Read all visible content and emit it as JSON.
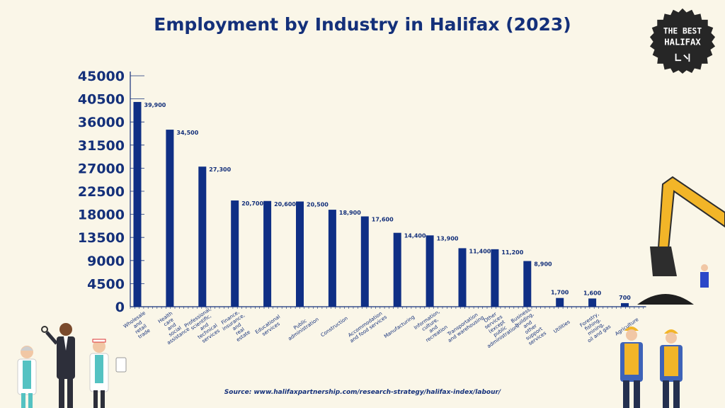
{
  "header": {
    "title": "Employment by Industry in Halifax (2023)"
  },
  "badge": {
    "line1": "THE BEST",
    "line2": "HALIFAX"
  },
  "footer": {
    "source": "Source: www.halifaxpartnership.com/research-strategy/halifax-index/labour/"
  },
  "colors": {
    "bar": "#0f2f85",
    "text": "#14307a",
    "background": "#faf6e8",
    "accent": "#f2b528"
  },
  "chart_data": {
    "type": "bar",
    "title": "Employment by Industry in Halifax (2023)",
    "ylim": [
      0,
      45000
    ],
    "yticks": [
      0,
      4500,
      9000,
      13500,
      18000,
      22500,
      27000,
      31500,
      36000,
      40500,
      45000
    ],
    "ytick_labels": [
      "0",
      "4500",
      "9000",
      "13500",
      "18000",
      "22500",
      "27000",
      "31500",
      "36000",
      "40500",
      "45000"
    ],
    "categories": [
      [
        "Wholesale",
        "and",
        "retail",
        "trade"
      ],
      [
        "Health",
        "care",
        "and",
        "social",
        "assistance"
      ],
      [
        "Professional,",
        "scientific,",
        "and",
        "technical",
        "services"
      ],
      [
        "Finance,",
        "insurance,",
        "and",
        "real",
        "estate"
      ],
      [
        "Educational",
        "services"
      ],
      [
        "Public",
        "administration"
      ],
      [
        "Construction"
      ],
      [
        "Accommodation",
        "and food services"
      ],
      [
        "Manufacturing"
      ],
      [
        "Information,",
        "culture,",
        "and",
        "recreation"
      ],
      [
        "Transportation",
        "and warehousing"
      ],
      [
        "Other",
        "services",
        "(except",
        "public",
        "administration)"
      ],
      [
        "Business,",
        "building,",
        "and",
        "other",
        "support",
        "services"
      ],
      [
        "Utilities"
      ],
      [
        "Forestry,",
        "fishing,",
        "mining,",
        "oil and gas"
      ],
      [
        "Agriculture"
      ]
    ],
    "values": [
      39900,
      34500,
      27300,
      20700,
      20600,
      20500,
      18900,
      17600,
      14400,
      13900,
      11400,
      11200,
      8900,
      1700,
      1600,
      700
    ],
    "value_labels": [
      "39,900",
      "34,500",
      "27,300",
      "20,700",
      "20,600",
      "20,500",
      "18,900",
      "17,600",
      "14,400",
      "13,900",
      "11,400",
      "11,200",
      "8,900",
      "1,700",
      "1,600",
      "700"
    ],
    "grid": false,
    "legend": "none"
  }
}
